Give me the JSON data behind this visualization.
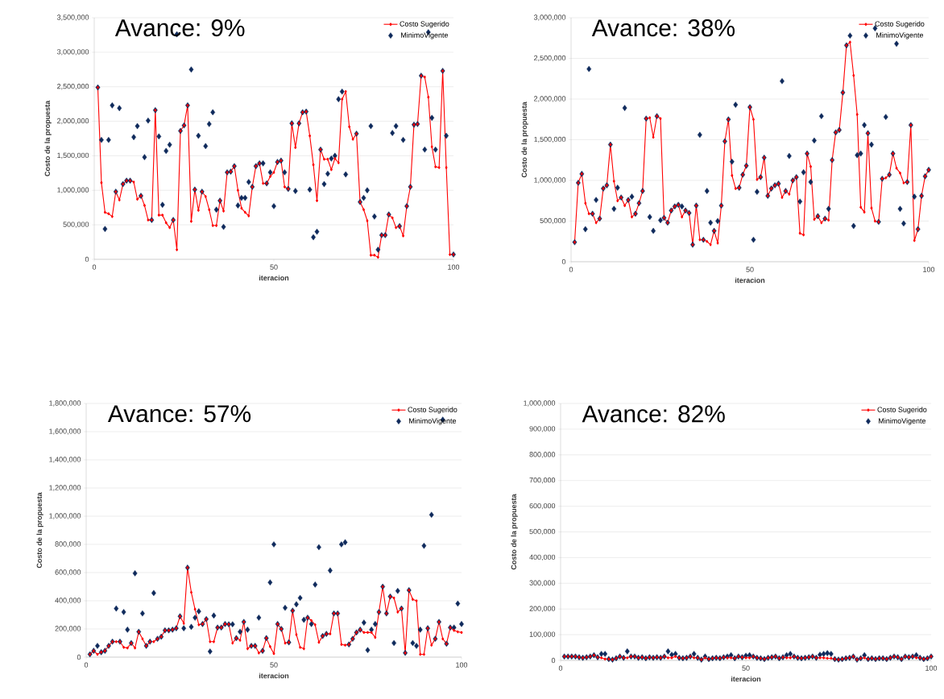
{
  "chart_data": [
    {
      "type": "line",
      "title": "Avance: 9%",
      "xlabel": "iteracion",
      "ylabel": "Costo de la propuesta",
      "xlim": [
        0,
        100
      ],
      "xticks": [
        0,
        50,
        100
      ],
      "ylim": [
        0,
        3500000
      ],
      "yticks": [
        0,
        {
          "value": 500000,
          "label": "500,000"
        },
        {
          "value": 1000000,
          "label": "1,000,000"
        },
        {
          "value": 1500000,
          "label": "1,500,000"
        },
        {
          "value": 2000000,
          "label": "2,000,000"
        },
        {
          "value": 2500000,
          "label": "2,500,000"
        },
        {
          "value": 3000000,
          "label": "3,000,000"
        },
        {
          "value": 3500000,
          "label": "3,500,000"
        }
      ],
      "grid": "y",
      "legend": "top right",
      "series": [
        {
          "name": "Costo Sugerido",
          "type": "line",
          "marker": "diamond",
          "color": "#ff0000",
          "x": [
            1,
            2,
            3,
            4,
            5,
            6,
            7,
            8,
            9,
            10,
            11,
            12,
            13,
            14,
            15,
            16,
            17,
            18,
            19,
            20,
            21,
            22,
            23,
            24,
            25,
            26,
            27,
            28,
            29,
            30,
            31,
            32,
            33,
            34,
            35,
            36,
            37,
            38,
            39,
            40,
            41,
            42,
            43,
            44,
            45,
            46,
            47,
            48,
            49,
            50,
            51,
            52,
            53,
            54,
            55,
            56,
            57,
            58,
            59,
            60,
            61,
            62,
            63,
            64,
            65,
            66,
            67,
            68,
            69,
            70,
            71,
            72,
            73,
            74,
            75,
            76,
            77,
            78,
            79,
            80,
            81,
            82,
            83,
            84,
            85,
            86,
            87,
            88,
            89,
            90,
            91,
            92,
            93,
            94,
            95,
            96,
            97,
            98,
            99,
            100
          ],
          "values": [
            2490000,
            1110000,
            680000,
            660000,
            620000,
            980000,
            860000,
            1090000,
            1140000,
            1140000,
            1120000,
            870000,
            920000,
            780000,
            570000,
            570000,
            2160000,
            640000,
            640000,
            530000,
            460000,
            570000,
            140000,
            1860000,
            1940000,
            2230000,
            550000,
            1010000,
            710000,
            980000,
            910000,
            720000,
            490000,
            490000,
            850000,
            700000,
            1260000,
            1270000,
            1350000,
            1000000,
            740000,
            680000,
            630000,
            1050000,
            1350000,
            1390000,
            1100000,
            1100000,
            1200000,
            1260000,
            1410000,
            1430000,
            1050000,
            1020000,
            1970000,
            1620000,
            1970000,
            2130000,
            2140000,
            1790000,
            1370000,
            850000,
            1590000,
            1450000,
            1450000,
            1300000,
            1460000,
            1400000,
            2320000,
            2430000,
            1920000,
            1740000,
            1820000,
            830000,
            720000,
            560000,
            60000,
            60000,
            30000,
            350000,
            350000,
            650000,
            600000,
            460000,
            480000,
            340000,
            770000,
            1050000,
            1950000,
            1960000,
            2660000,
            2640000,
            2350000,
            1630000,
            1340000,
            1330000,
            2730000,
            1330000,
            70000,
            70000
          ]
        },
        {
          "name": "MinimoVigente",
          "type": "scatter",
          "marker": "diamond",
          "color": "#0f2a5c",
          "x": [
            1,
            2,
            3,
            4,
            5,
            6,
            7,
            8,
            9,
            10,
            11,
            12,
            13,
            14,
            15,
            16,
            17,
            18,
            19,
            20,
            21,
            22,
            23,
            24,
            25,
            26,
            27,
            28,
            29,
            30,
            31,
            32,
            33,
            34,
            35,
            36,
            37,
            38,
            39,
            40,
            41,
            42,
            43,
            44,
            45,
            46,
            47,
            48,
            49,
            50,
            51,
            52,
            53,
            54,
            55,
            56,
            57,
            58,
            59,
            60,
            61,
            62,
            63,
            64,
            65,
            66,
            67,
            68,
            69,
            70,
            73,
            74,
            75,
            76,
            77,
            78,
            79,
            80,
            81,
            82,
            83,
            84,
            85,
            86,
            87,
            88,
            89,
            90,
            91,
            92,
            93,
            94,
            95,
            97,
            98,
            100
          ],
          "values": [
            2490000,
            1730000,
            440000,
            1730000,
            2230000,
            980000,
            2190000,
            1090000,
            1140000,
            1140000,
            1770000,
            1930000,
            920000,
            1480000,
            2010000,
            570000,
            2160000,
            1780000,
            790000,
            1570000,
            1660000,
            570000,
            3260000,
            1860000,
            1940000,
            2230000,
            2750000,
            1010000,
            1790000,
            980000,
            1640000,
            1960000,
            2130000,
            720000,
            850000,
            470000,
            1260000,
            1270000,
            1350000,
            780000,
            890000,
            890000,
            1120000,
            1050000,
            1350000,
            1390000,
            1390000,
            1100000,
            1260000,
            770000,
            1410000,
            1430000,
            1260000,
            1020000,
            1970000,
            990000,
            1970000,
            2130000,
            2140000,
            1010000,
            320000,
            400000,
            1590000,
            1090000,
            1240000,
            1460000,
            1500000,
            2320000,
            2430000,
            1230000,
            1820000,
            830000,
            890000,
            1000000,
            1930000,
            620000,
            140000,
            350000,
            350000,
            650000,
            1830000,
            1930000,
            480000,
            1730000,
            770000,
            1050000,
            1950000,
            1960000,
            2660000,
            1590000,
            3290000,
            2050000,
            1590000,
            2730000,
            1790000,
            70000
          ]
        }
      ]
    },
    {
      "type": "line",
      "title": "Avance: 38%",
      "xlabel": "iteracion",
      "ylabel": "Costo de la propuesta",
      "xlim": [
        0,
        100
      ],
      "xticks": [
        0,
        50,
        100
      ],
      "ylim": [
        0,
        3000000
      ],
      "yticks": [
        0,
        {
          "value": 500000,
          "label": "500,000"
        },
        {
          "value": 1000000,
          "label": "1,000,000"
        },
        {
          "value": 1500000,
          "label": "1,500,000"
        },
        {
          "value": 2000000,
          "label": "2,000,000"
        },
        {
          "value": 2500000,
          "label": "2,500,000"
        },
        {
          "value": 3000000,
          "label": "3,000,000"
        }
      ],
      "grid": "y",
      "legend": "top right",
      "series": [
        {
          "name": "Costo Sugerido",
          "type": "line",
          "marker": "diamond",
          "color": "#ff0000",
          "x": [
            1,
            2,
            3,
            4,
            5,
            6,
            7,
            8,
            9,
            10,
            11,
            12,
            13,
            14,
            15,
            16,
            17,
            18,
            19,
            20,
            21,
            22,
            23,
            24,
            25,
            26,
            27,
            28,
            29,
            30,
            31,
            32,
            33,
            34,
            35,
            36,
            37,
            38,
            39,
            40,
            41,
            42,
            43,
            44,
            45,
            46,
            47,
            48,
            49,
            50,
            51,
            52,
            53,
            54,
            55,
            56,
            57,
            58,
            59,
            60,
            61,
            62,
            63,
            64,
            65,
            66,
            67,
            68,
            69,
            70,
            71,
            72,
            73,
            74,
            75,
            76,
            77,
            78,
            79,
            80,
            81,
            82,
            83,
            84,
            85,
            86,
            87,
            88,
            89,
            90,
            91,
            92,
            93,
            94,
            95,
            96,
            97,
            98,
            99,
            100
          ],
          "values": [
            240000,
            970000,
            1080000,
            720000,
            590000,
            590000,
            480000,
            530000,
            900000,
            940000,
            1440000,
            990000,
            750000,
            790000,
            690000,
            760000,
            550000,
            590000,
            720000,
            870000,
            1760000,
            1770000,
            1530000,
            1790000,
            1760000,
            540000,
            480000,
            630000,
            680000,
            700000,
            550000,
            630000,
            600000,
            210000,
            690000,
            270000,
            270000,
            250000,
            210000,
            380000,
            230000,
            690000,
            1480000,
            1750000,
            1060000,
            900000,
            910000,
            1070000,
            1180000,
            1900000,
            1750000,
            1010000,
            1040000,
            1280000,
            810000,
            900000,
            940000,
            960000,
            790000,
            870000,
            830000,
            1000000,
            1040000,
            350000,
            330000,
            1330000,
            1170000,
            520000,
            560000,
            480000,
            530000,
            510000,
            1250000,
            1590000,
            1620000,
            2080000,
            2660000,
            2700000,
            2290000,
            1810000,
            670000,
            610000,
            1580000,
            660000,
            500000,
            490000,
            1020000,
            1030000,
            1070000,
            1330000,
            1150000,
            1090000,
            970000,
            980000,
            1680000,
            260000,
            400000,
            810000,
            1050000,
            1130000
          ]
        },
        {
          "name": "MinimoVigente",
          "type": "scatter",
          "marker": "diamond",
          "color": "#0f2a5c",
          "x": [
            1,
            2,
            3,
            4,
            5,
            6,
            7,
            8,
            9,
            10,
            11,
            12,
            13,
            14,
            15,
            16,
            17,
            18,
            19,
            20,
            21,
            22,
            23,
            24,
            25,
            26,
            27,
            28,
            29,
            30,
            31,
            32,
            33,
            34,
            35,
            36,
            37,
            38,
            39,
            40,
            41,
            42,
            43,
            44,
            45,
            46,
            47,
            48,
            49,
            50,
            51,
            52,
            53,
            54,
            55,
            56,
            57,
            58,
            59,
            60,
            61,
            62,
            63,
            64,
            65,
            66,
            67,
            68,
            69,
            70,
            71,
            72,
            73,
            74,
            75,
            76,
            77,
            78,
            79,
            80,
            81,
            82,
            83,
            84,
            85,
            86,
            87,
            88,
            89,
            90,
            91,
            92,
            93,
            94,
            95,
            96,
            97,
            98,
            99,
            100
          ],
          "values": [
            240000,
            970000,
            1080000,
            400000,
            2370000,
            590000,
            760000,
            530000,
            900000,
            940000,
            1440000,
            650000,
            910000,
            790000,
            1890000,
            760000,
            800000,
            590000,
            720000,
            870000,
            1760000,
            550000,
            380000,
            1790000,
            510000,
            540000,
            480000,
            630000,
            680000,
            700000,
            680000,
            630000,
            600000,
            210000,
            690000,
            1560000,
            270000,
            870000,
            480000,
            380000,
            500000,
            690000,
            1480000,
            1750000,
            1230000,
            1930000,
            910000,
            1070000,
            1180000,
            1900000,
            270000,
            860000,
            1040000,
            1280000,
            810000,
            900000,
            940000,
            960000,
            2220000,
            870000,
            1300000,
            1000000,
            1040000,
            740000,
            1100000,
            1330000,
            980000,
            1490000,
            560000,
            1790000,
            530000,
            650000,
            1250000,
            1590000,
            1620000,
            2080000,
            2660000,
            2780000,
            440000,
            1310000,
            1330000,
            1680000,
            1580000,
            1440000,
            2870000,
            490000,
            1020000,
            1780000,
            1070000,
            1330000,
            2680000,
            650000,
            470000,
            980000,
            1680000,
            800000,
            400000,
            810000,
            1050000,
            1130000
          ]
        }
      ]
    },
    {
      "type": "line",
      "title": "Avance: 57%",
      "xlabel": "iteracion",
      "ylabel": "Costo de la propuesta",
      "xlim": [
        0,
        100
      ],
      "xticks": [
        0,
        50,
        100
      ],
      "ylim": [
        0,
        1800000
      ],
      "yticks": [
        0,
        {
          "value": 200000,
          "label": "200,000"
        },
        {
          "value": 400000,
          "label": "400,000"
        },
        {
          "value": 600000,
          "label": "600,000"
        },
        {
          "value": 800000,
          "label": "800,000"
        },
        {
          "value": 1000000,
          "label": "1,000,000"
        },
        {
          "value": 1200000,
          "label": "1,200,000"
        },
        {
          "value": 1400000,
          "label": "1,400,000"
        },
        {
          "value": 1600000,
          "label": "1,600,000"
        },
        {
          "value": 1800000,
          "label": "1,800,000"
        }
      ],
      "grid": "y",
      "legend": "top right",
      "series": [
        {
          "name": "Costo Sugerido",
          "type": "line",
          "marker": "diamond",
          "color": "#ff0000",
          "x": [
            1,
            2,
            3,
            4,
            5,
            6,
            7,
            8,
            9,
            10,
            11,
            12,
            13,
            14,
            15,
            16,
            17,
            18,
            19,
            20,
            21,
            22,
            23,
            24,
            25,
            26,
            27,
            28,
            29,
            30,
            31,
            32,
            33,
            34,
            35,
            36,
            37,
            38,
            39,
            40,
            41,
            42,
            43,
            44,
            45,
            46,
            47,
            48,
            49,
            50,
            51,
            52,
            53,
            54,
            55,
            56,
            57,
            58,
            59,
            60,
            61,
            62,
            63,
            64,
            65,
            66,
            67,
            68,
            69,
            70,
            71,
            72,
            73,
            74,
            75,
            76,
            77,
            78,
            79,
            80,
            81,
            82,
            83,
            84,
            85,
            86,
            87,
            88,
            89,
            90,
            91,
            92,
            93,
            94,
            95,
            96,
            97,
            98,
            99,
            100
          ],
          "values": [
            20000,
            45000,
            20000,
            35000,
            45000,
            80000,
            110000,
            110000,
            110000,
            70000,
            65000,
            100000,
            65000,
            180000,
            130000,
            80000,
            110000,
            110000,
            130000,
            145000,
            190000,
            190000,
            195000,
            205000,
            290000,
            240000,
            635000,
            460000,
            340000,
            230000,
            235000,
            270000,
            110000,
            110000,
            210000,
            210000,
            235000,
            233000,
            100000,
            135000,
            120000,
            250000,
            60000,
            80000,
            80000,
            30000,
            45000,
            135000,
            75000,
            25000,
            235000,
            200000,
            100000,
            105000,
            330000,
            160000,
            70000,
            60000,
            280000,
            260000,
            230000,
            105000,
            150000,
            165000,
            165000,
            310000,
            310000,
            90000,
            85000,
            90000,
            130000,
            175000,
            195000,
            175000,
            175000,
            175000,
            140000,
            320000,
            500000,
            310000,
            430000,
            420000,
            320000,
            345000,
            30000,
            475000,
            410000,
            400000,
            20000,
            20000,
            205000,
            85000,
            130000,
            250000,
            130000,
            95000,
            210000,
            190000,
            180000,
            175000
          ]
        },
        {
          "name": "MinimoVigente",
          "type": "scatter",
          "marker": "diamond",
          "color": "#0f2a5c",
          "x": [
            1,
            2,
            3,
            4,
            5,
            6,
            7,
            8,
            9,
            10,
            11,
            12,
            13,
            14,
            15,
            16,
            17,
            18,
            19,
            20,
            21,
            22,
            23,
            24,
            25,
            26,
            27,
            28,
            29,
            30,
            31,
            32,
            33,
            34,
            35,
            36,
            37,
            38,
            39,
            40,
            41,
            42,
            43,
            44,
            45,
            46,
            47,
            48,
            49,
            50,
            51,
            52,
            53,
            54,
            55,
            56,
            57,
            58,
            59,
            60,
            61,
            62,
            63,
            64,
            65,
            66,
            67,
            68,
            69,
            70,
            71,
            72,
            73,
            74,
            75,
            76,
            77,
            78,
            79,
            80,
            81,
            82,
            83,
            84,
            85,
            86,
            87,
            88,
            89,
            90,
            91,
            92,
            93,
            94,
            95,
            96,
            97,
            98,
            99,
            100
          ],
          "values": [
            20000,
            45000,
            80000,
            35000,
            45000,
            80000,
            110000,
            345000,
            110000,
            320000,
            195000,
            100000,
            595000,
            180000,
            310000,
            80000,
            110000,
            455000,
            130000,
            145000,
            190000,
            190000,
            195000,
            205000,
            290000,
            205000,
            635000,
            215000,
            280000,
            325000,
            235000,
            270000,
            40000,
            295000,
            210000,
            210000,
            235000,
            233000,
            233000,
            135000,
            180000,
            250000,
            195000,
            80000,
            80000,
            280000,
            45000,
            135000,
            530000,
            800000,
            235000,
            200000,
            350000,
            105000,
            330000,
            375000,
            420000,
            265000,
            280000,
            235000,
            515000,
            780000,
            150000,
            165000,
            615000,
            310000,
            310000,
            800000,
            815000,
            90000,
            130000,
            175000,
            195000,
            245000,
            50000,
            195000,
            235000,
            320000,
            500000,
            310000,
            430000,
            100000,
            470000,
            345000,
            30000,
            475000,
            100000,
            80000,
            195000,
            790000,
            205000,
            1010000,
            130000,
            250000,
            1685000,
            95000,
            210000,
            210000,
            380000,
            235000
          ]
        }
      ]
    },
    {
      "type": "line",
      "title": "Avance: 82%",
      "xlabel": "iteracion",
      "ylabel": "Costo de la propuesta",
      "xlim": [
        0,
        100
      ],
      "xticks": [
        0,
        50,
        100
      ],
      "ylim": [
        0,
        1000000
      ],
      "yticks": [
        0,
        {
          "value": 100000,
          "label": "100,000"
        },
        {
          "value": 200000,
          "label": "200,000"
        },
        {
          "value": 300000,
          "label": "300,000"
        },
        {
          "value": 400000,
          "label": "400,000"
        },
        {
          "value": 500000,
          "label": "500,000"
        },
        {
          "value": 600000,
          "label": "600,000"
        },
        {
          "value": 700000,
          "label": "700,000"
        },
        {
          "value": 800000,
          "label": "800,000"
        },
        {
          "value": 900000,
          "label": "900,000"
        },
        {
          "value": 1000000,
          "label": "1,000,000"
        }
      ],
      "grid": "y",
      "legend": "top right",
      "series": [
        {
          "name": "Costo Sugerido",
          "type": "line",
          "marker": "diamond",
          "color": "#ff0000",
          "x": [
            1,
            2,
            3,
            4,
            5,
            6,
            7,
            8,
            9,
            10,
            11,
            12,
            13,
            14,
            15,
            16,
            17,
            18,
            19,
            20,
            21,
            22,
            23,
            24,
            25,
            26,
            27,
            28,
            29,
            30,
            31,
            32,
            33,
            34,
            35,
            36,
            37,
            38,
            39,
            40,
            41,
            42,
            43,
            44,
            45,
            46,
            47,
            48,
            49,
            50,
            51,
            52,
            53,
            54,
            55,
            56,
            57,
            58,
            59,
            60,
            61,
            62,
            63,
            64,
            65,
            66,
            67,
            68,
            69,
            70,
            71,
            72,
            73,
            74,
            75,
            76,
            77,
            78,
            79,
            80,
            81,
            82,
            83,
            84,
            85,
            86,
            87,
            88,
            89,
            90,
            91,
            92,
            93,
            94,
            95,
            96,
            97,
            98,
            99,
            100
          ],
          "values": [
            15000,
            15000,
            15000,
            15000,
            12000,
            10000,
            12000,
            15000,
            20000,
            12000,
            10000,
            5000,
            5000,
            3000,
            8000,
            15000,
            10000,
            10000,
            15000,
            15000,
            10000,
            12000,
            8000,
            12000,
            10000,
            12000,
            10000,
            15000,
            10000,
            10000,
            15000,
            10000,
            8000,
            10000,
            15000,
            10000,
            10000,
            3000,
            10000,
            5000,
            8000,
            10000,
            8000,
            12000,
            10000,
            10000,
            8000,
            15000,
            12000,
            10000,
            10000,
            15000,
            10000,
            8000,
            5000,
            10000,
            12000,
            15000,
            8000,
            12000,
            10000,
            10000,
            15000,
            10000,
            8000,
            10000,
            12000,
            15000,
            10000,
            10000,
            10000,
            8000,
            8000,
            5000,
            3000,
            5000,
            8000,
            10000,
            15000,
            3000,
            8000,
            10000,
            5000,
            8000,
            5000,
            8000,
            8000,
            5000,
            10000,
            15000,
            12000,
            5000,
            15000,
            12000,
            15000,
            10000,
            10000,
            5000,
            8000,
            15000
          ]
        },
        {
          "name": "MinimoVigente",
          "type": "scatter",
          "marker": "diamond",
          "color": "#0f2a5c",
          "x": [
            1,
            2,
            3,
            4,
            5,
            6,
            7,
            8,
            9,
            10,
            11,
            12,
            13,
            14,
            15,
            16,
            17,
            18,
            19,
            20,
            21,
            22,
            23,
            24,
            25,
            26,
            27,
            28,
            29,
            30,
            31,
            32,
            33,
            34,
            35,
            36,
            37,
            38,
            39,
            40,
            41,
            42,
            43,
            44,
            45,
            46,
            47,
            48,
            49,
            50,
            51,
            52,
            53,
            54,
            55,
            56,
            57,
            58,
            59,
            60,
            61,
            62,
            63,
            64,
            65,
            66,
            67,
            68,
            69,
            70,
            71,
            72,
            73,
            74,
            75,
            76,
            77,
            78,
            79,
            80,
            81,
            82,
            83,
            84,
            85,
            86,
            87,
            88,
            89,
            90,
            91,
            92,
            93,
            94,
            95,
            96,
            97,
            98,
            99,
            100
          ],
          "values": [
            15000,
            15000,
            15000,
            15000,
            12000,
            10000,
            12000,
            15000,
            20000,
            12000,
            25000,
            25000,
            5000,
            3000,
            8000,
            15000,
            10000,
            35000,
            15000,
            15000,
            10000,
            12000,
            8000,
            12000,
            10000,
            12000,
            10000,
            15000,
            35000,
            22000,
            25000,
            10000,
            8000,
            10000,
            15000,
            25000,
            10000,
            3000,
            15000,
            5000,
            8000,
            10000,
            8000,
            12000,
            15000,
            20000,
            8000,
            15000,
            12000,
            18000,
            20000,
            15000,
            10000,
            8000,
            5000,
            10000,
            12000,
            15000,
            8000,
            12000,
            20000,
            25000,
            15000,
            10000,
            8000,
            10000,
            12000,
            15000,
            10000,
            22000,
            25000,
            28000,
            25000,
            5000,
            3000,
            5000,
            8000,
            10000,
            15000,
            3000,
            8000,
            20000,
            5000,
            8000,
            5000,
            8000,
            8000,
            5000,
            10000,
            15000,
            12000,
            5000,
            15000,
            12000,
            15000,
            20000,
            10000,
            5000,
            8000,
            15000
          ]
        }
      ]
    }
  ]
}
